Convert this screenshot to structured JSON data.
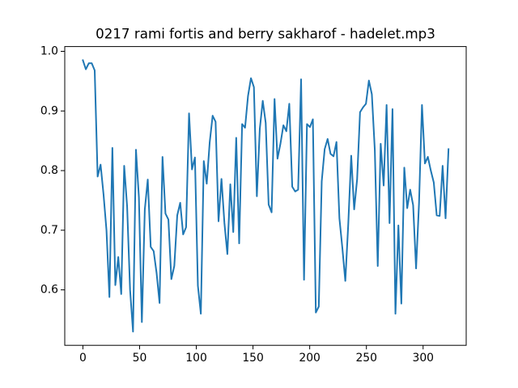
{
  "chart_data": {
    "type": "line",
    "title": "0217 rami fortis and berry sakharof - hadelet.mp3",
    "x": [
      0,
      2.6,
      5.2,
      7.8,
      10.4,
      13,
      15.6,
      18.2,
      20.8,
      23.4,
      26,
      28.6,
      31.2,
      33.8,
      36.4,
      39,
      41.6,
      44.2,
      46.8,
      49.4,
      52,
      54.6,
      57.2,
      59.8,
      62.4,
      65,
      67.6,
      70.2,
      72.8,
      75.4,
      78,
      80.6,
      83.2,
      85.8,
      88.4,
      91,
      93.6,
      96.2,
      98.8,
      101.4,
      104,
      106.6,
      109.2,
      111.8,
      114.4,
      117,
      119.6,
      122.2,
      124.8,
      127.4,
      130,
      132.6,
      135.2,
      137.8,
      140.4,
      143,
      145.6,
      148.2,
      150.8,
      153.4,
      156,
      158.6,
      161.2,
      163.8,
      166.4,
      169,
      171.6,
      174.2,
      176.8,
      179.4,
      182,
      184.6,
      187.2,
      189.8,
      192.4,
      195,
      197.6,
      200.2,
      202.8,
      205.4,
      208,
      210.6,
      213.2,
      215.8,
      218.4,
      221,
      223.6,
      226.2,
      228.8,
      231.4,
      234,
      236.6,
      239.2,
      241.8,
      244.4,
      247,
      249.6,
      252.2,
      254.8,
      257.4,
      260,
      262.6,
      265.2,
      267.8,
      270.4,
      273,
      275.6,
      278.2,
      280.8,
      283.4,
      286,
      288.6,
      291.2,
      293.8,
      296.4,
      299,
      301.6,
      304.2,
      306.8,
      309.4,
      312,
      314.6,
      317.2,
      319.8,
      322.4
    ],
    "values": [
      0.985,
      0.97,
      0.98,
      0.98,
      0.968,
      0.79,
      0.81,
      0.76,
      0.7,
      0.588,
      0.838,
      0.608,
      0.655,
      0.593,
      0.808,
      0.74,
      0.6,
      0.53,
      0.835,
      0.755,
      0.546,
      0.735,
      0.785,
      0.672,
      0.665,
      0.628,
      0.578,
      0.823,
      0.728,
      0.718,
      0.618,
      0.64,
      0.725,
      0.746,
      0.693,
      0.705,
      0.896,
      0.802,
      0.822,
      0.607,
      0.56,
      0.816,
      0.778,
      0.847,
      0.892,
      0.882,
      0.715,
      0.786,
      0.712,
      0.66,
      0.777,
      0.697,
      0.855,
      0.678,
      0.878,
      0.872,
      0.925,
      0.955,
      0.94,
      0.757,
      0.87,
      0.917,
      0.88,
      0.743,
      0.73,
      0.92,
      0.82,
      0.845,
      0.876,
      0.866,
      0.912,
      0.773,
      0.765,
      0.768,
      0.953,
      0.617,
      0.878,
      0.873,
      0.886,
      0.562,
      0.572,
      0.782,
      0.836,
      0.853,
      0.828,
      0.824,
      0.848,
      0.72,
      0.67,
      0.615,
      0.71,
      0.825,
      0.735,
      0.785,
      0.898,
      0.906,
      0.912,
      0.951,
      0.928,
      0.835,
      0.64,
      0.845,
      0.775,
      0.91,
      0.712,
      0.903,
      0.56,
      0.708,
      0.577,
      0.805,
      0.737,
      0.768,
      0.742,
      0.636,
      0.745,
      0.91,
      0.812,
      0.823,
      0.8,
      0.78,
      0.725,
      0.724,
      0.808,
      0.72,
      0.836
    ],
    "color": "#1f77b4",
    "xlim": [
      -16,
      338
    ],
    "xticks": [
      0,
      50,
      100,
      150,
      200,
      250,
      300
    ],
    "ylim": [
      0.507,
      1.008
    ],
    "yticks": [
      0.6,
      0.7,
      0.8,
      0.9,
      {
        "value": 1,
        "label": "1.0"
      }
    ],
    "grid": false
  }
}
